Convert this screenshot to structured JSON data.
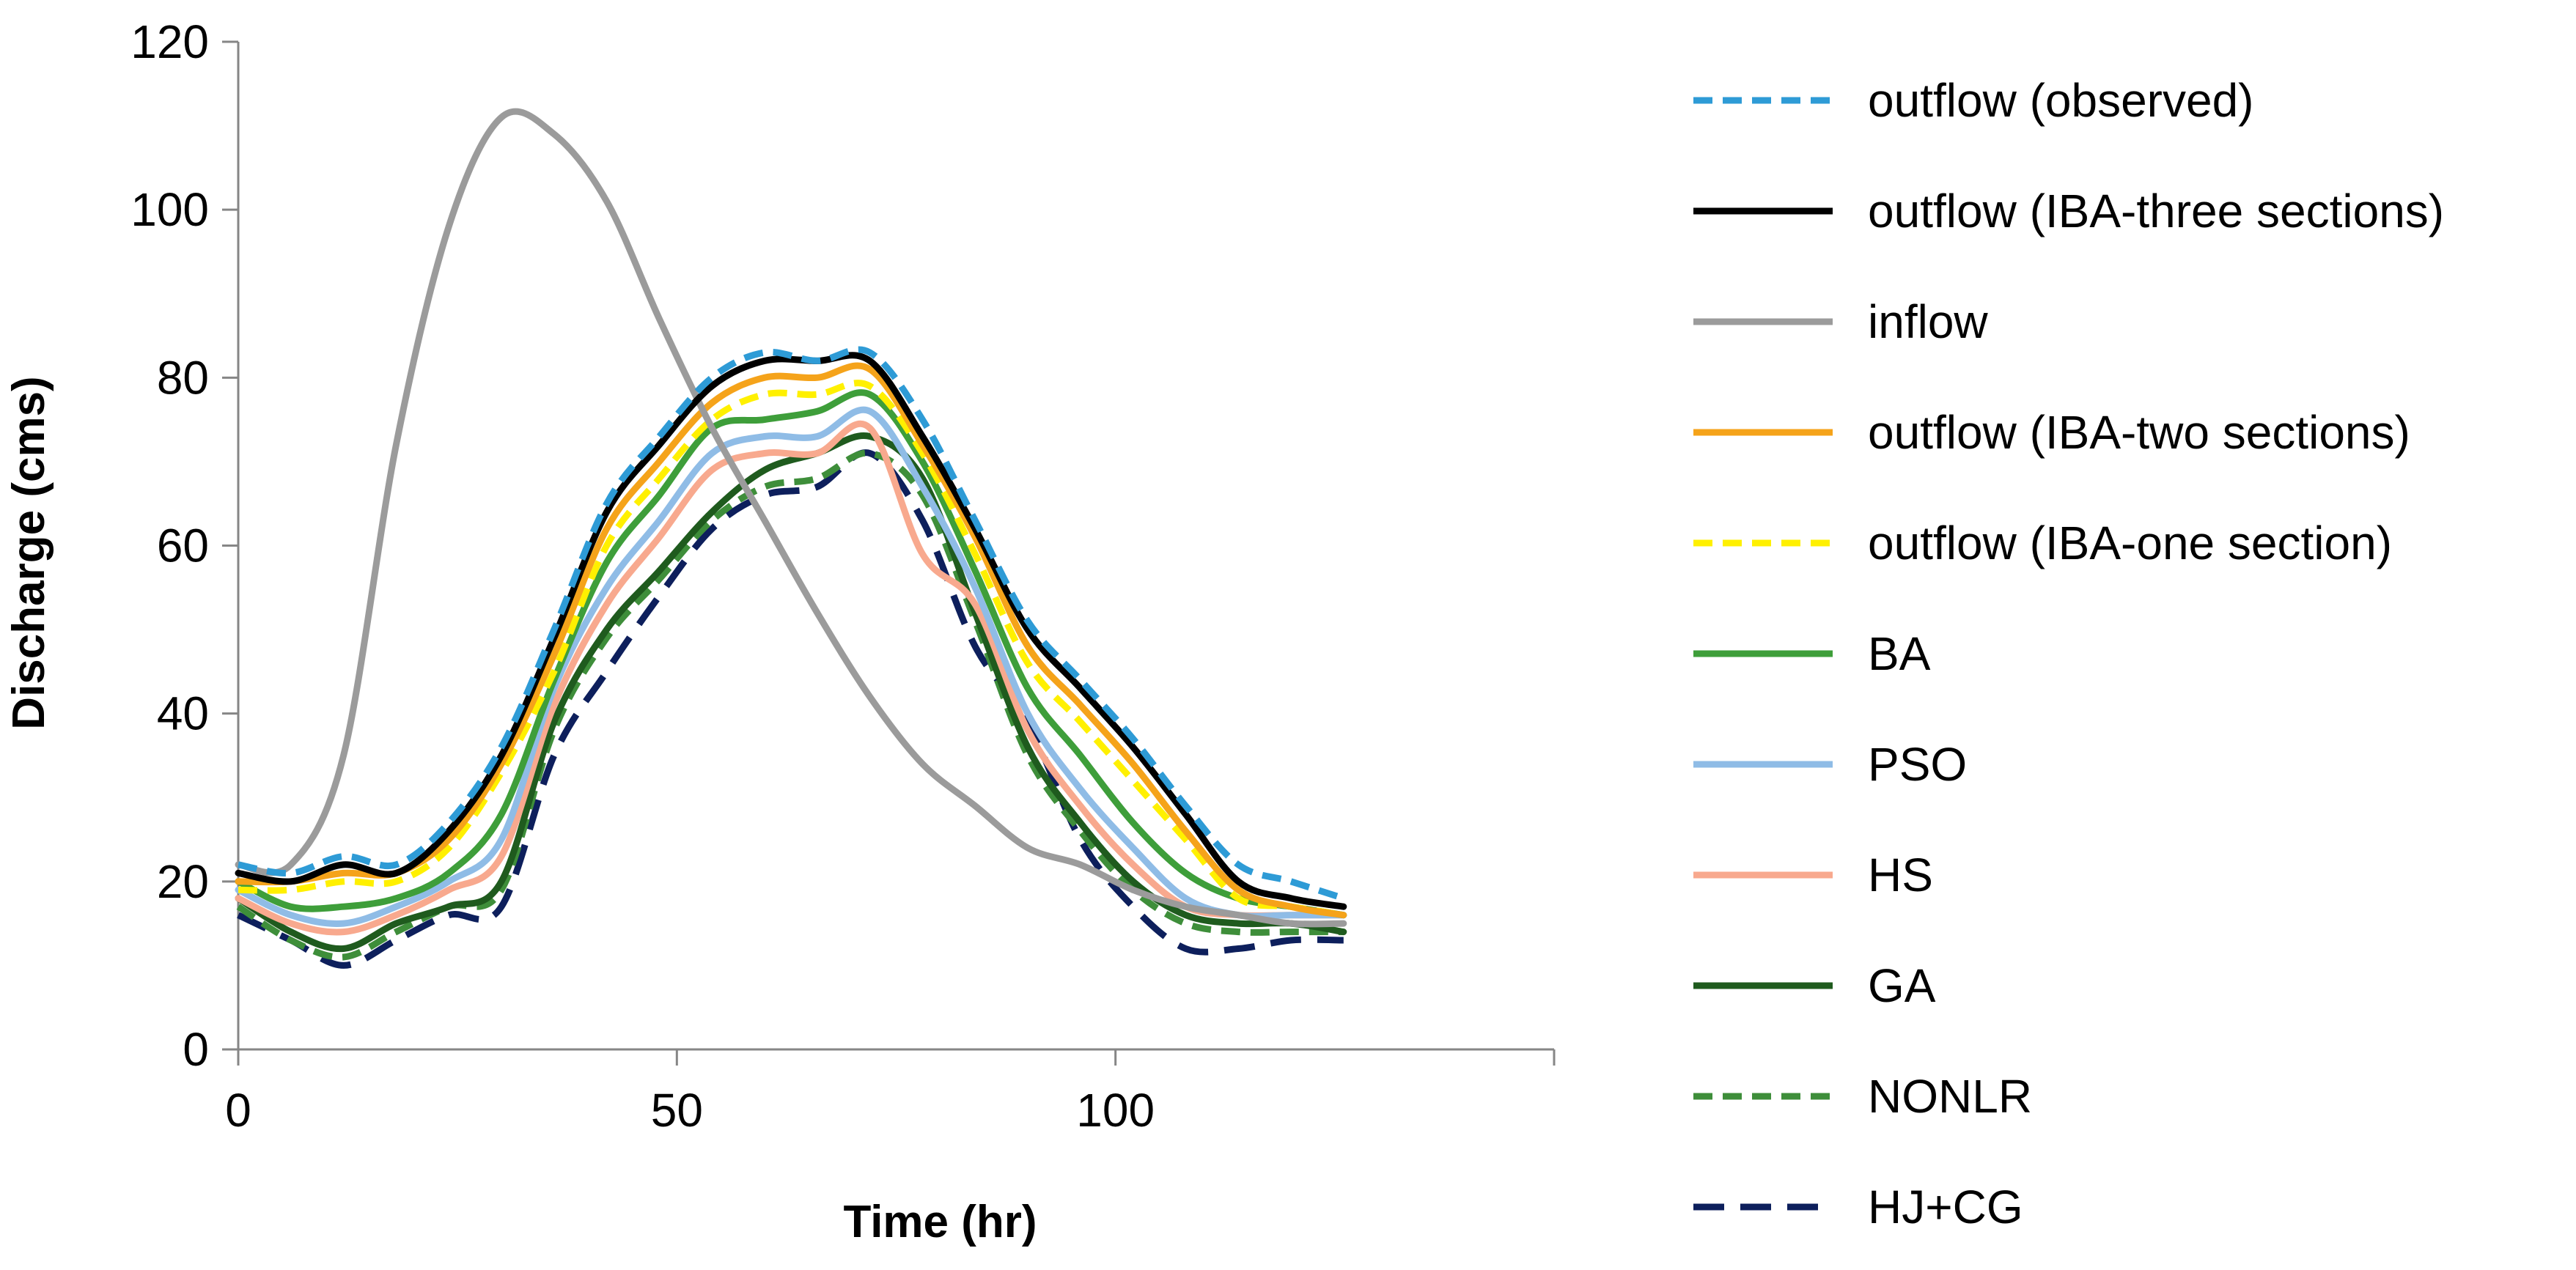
{
  "chart_data": {
    "type": "line",
    "title": "",
    "xlabel": "Time (hr)",
    "ylabel": "Discharge (cms)",
    "xlim": [
      0,
      150
    ],
    "ylim": [
      0,
      120
    ],
    "xticks": [
      0,
      50,
      100
    ],
    "yticks": [
      0,
      20,
      40,
      60,
      80,
      100,
      120
    ],
    "grid": false,
    "legend_position": "right",
    "series": [
      {
        "name": "outflow (observed)",
        "color": "#2E9BD6",
        "dash": "dashed",
        "points": [
          [
            0,
            22
          ],
          [
            6,
            21
          ],
          [
            12,
            23
          ],
          [
            18,
            22
          ],
          [
            24,
            27
          ],
          [
            30,
            36
          ],
          [
            36,
            50
          ],
          [
            42,
            65
          ],
          [
            48,
            73
          ],
          [
            54,
            80
          ],
          [
            60,
            83
          ],
          [
            66,
            82
          ],
          [
            72,
            83
          ],
          [
            78,
            75
          ],
          [
            84,
            63
          ],
          [
            90,
            51
          ],
          [
            96,
            44
          ],
          [
            102,
            37
          ],
          [
            108,
            29
          ],
          [
            114,
            22
          ],
          [
            120,
            20
          ],
          [
            126,
            18
          ]
        ]
      },
      {
        "name": "outflow (IBA-three sections)",
        "color": "#000000",
        "dash": "solid",
        "points": [
          [
            0,
            21
          ],
          [
            6,
            20
          ],
          [
            12,
            22
          ],
          [
            18,
            21
          ],
          [
            24,
            26
          ],
          [
            30,
            35
          ],
          [
            36,
            49
          ],
          [
            42,
            64
          ],
          [
            48,
            72
          ],
          [
            54,
            79
          ],
          [
            60,
            82
          ],
          [
            66,
            82
          ],
          [
            72,
            82
          ],
          [
            78,
            73
          ],
          [
            84,
            62
          ],
          [
            90,
            50
          ],
          [
            96,
            43
          ],
          [
            102,
            36
          ],
          [
            108,
            28
          ],
          [
            114,
            20
          ],
          [
            120,
            18
          ],
          [
            126,
            17
          ]
        ]
      },
      {
        "name": "inflow",
        "color": "#9B9B9B",
        "dash": "solid",
        "points": [
          [
            0,
            22
          ],
          [
            6,
            22
          ],
          [
            12,
            35
          ],
          [
            18,
            72
          ],
          [
            24,
            98
          ],
          [
            30,
            111
          ],
          [
            36,
            109
          ],
          [
            42,
            101
          ],
          [
            48,
            87
          ],
          [
            54,
            74
          ],
          [
            60,
            63
          ],
          [
            66,
            52
          ],
          [
            72,
            42
          ],
          [
            78,
            34
          ],
          [
            84,
            29
          ],
          [
            90,
            24
          ],
          [
            96,
            22
          ],
          [
            102,
            19
          ],
          [
            108,
            17
          ],
          [
            114,
            16
          ],
          [
            120,
            15
          ],
          [
            126,
            15
          ]
        ]
      },
      {
        "name": "outflow (IBA-two sections)",
        "color": "#F5A31A",
        "dash": "solid",
        "points": [
          [
            0,
            20
          ],
          [
            6,
            20
          ],
          [
            12,
            21
          ],
          [
            18,
            21
          ],
          [
            24,
            25
          ],
          [
            30,
            34
          ],
          [
            36,
            47
          ],
          [
            42,
            62
          ],
          [
            48,
            70
          ],
          [
            54,
            77
          ],
          [
            60,
            80
          ],
          [
            66,
            80
          ],
          [
            72,
            81
          ],
          [
            78,
            72
          ],
          [
            84,
            61
          ],
          [
            90,
            48
          ],
          [
            96,
            41
          ],
          [
            102,
            34
          ],
          [
            108,
            26
          ],
          [
            114,
            19
          ],
          [
            120,
            17
          ],
          [
            126,
            16
          ]
        ]
      },
      {
        "name": "outflow (IBA-one section)",
        "color": "#FFF000",
        "dash": "dashed",
        "points": [
          [
            0,
            19
          ],
          [
            6,
            19
          ],
          [
            12,
            20
          ],
          [
            18,
            20
          ],
          [
            24,
            24
          ],
          [
            30,
            33
          ],
          [
            36,
            45
          ],
          [
            42,
            60
          ],
          [
            48,
            68
          ],
          [
            54,
            75
          ],
          [
            60,
            78
          ],
          [
            66,
            78
          ],
          [
            72,
            79
          ],
          [
            78,
            71
          ],
          [
            84,
            59
          ],
          [
            90,
            46
          ],
          [
            96,
            39
          ],
          [
            102,
            32
          ],
          [
            108,
            25
          ],
          [
            114,
            18
          ],
          [
            120,
            17
          ],
          [
            126,
            16
          ]
        ]
      },
      {
        "name": "BA",
        "color": "#3E9E3A",
        "dash": "solid",
        "points": [
          [
            0,
            20
          ],
          [
            6,
            17
          ],
          [
            12,
            17
          ],
          [
            18,
            18
          ],
          [
            24,
            21
          ],
          [
            30,
            28
          ],
          [
            36,
            44
          ],
          [
            42,
            58
          ],
          [
            48,
            66
          ],
          [
            54,
            74
          ],
          [
            60,
            75
          ],
          [
            66,
            76
          ],
          [
            72,
            78
          ],
          [
            78,
            70
          ],
          [
            84,
            57
          ],
          [
            90,
            43
          ],
          [
            96,
            35
          ],
          [
            102,
            27
          ],
          [
            108,
            21
          ],
          [
            114,
            18
          ],
          [
            120,
            17
          ],
          [
            126,
            16
          ]
        ]
      },
      {
        "name": "PSO",
        "color": "#8FBCE6",
        "dash": "solid",
        "points": [
          [
            0,
            19
          ],
          [
            6,
            16
          ],
          [
            12,
            15
          ],
          [
            18,
            17
          ],
          [
            24,
            20
          ],
          [
            30,
            25
          ],
          [
            36,
            43
          ],
          [
            42,
            55
          ],
          [
            48,
            63
          ],
          [
            54,
            71
          ],
          [
            60,
            73
          ],
          [
            66,
            73
          ],
          [
            72,
            76
          ],
          [
            78,
            67
          ],
          [
            84,
            55
          ],
          [
            90,
            40
          ],
          [
            96,
            31
          ],
          [
            102,
            24
          ],
          [
            108,
            18
          ],
          [
            114,
            16
          ],
          [
            120,
            16
          ],
          [
            126,
            16
          ]
        ]
      },
      {
        "name": "HS",
        "color": "#F8A98E",
        "dash": "solid",
        "points": [
          [
            0,
            18
          ],
          [
            6,
            15
          ],
          [
            12,
            14
          ],
          [
            18,
            16
          ],
          [
            24,
            19
          ],
          [
            30,
            23
          ],
          [
            36,
            41
          ],
          [
            42,
            53
          ],
          [
            48,
            61
          ],
          [
            54,
            69
          ],
          [
            60,
            71
          ],
          [
            66,
            71
          ],
          [
            72,
            74
          ],
          [
            78,
            59
          ],
          [
            84,
            53
          ],
          [
            90,
            38
          ],
          [
            96,
            29
          ],
          [
            102,
            22
          ],
          [
            108,
            17
          ],
          [
            114,
            16
          ],
          [
            120,
            16
          ],
          [
            126,
            16
          ]
        ]
      },
      {
        "name": "GA",
        "color": "#1F5B1E",
        "dash": "solid",
        "points": [
          [
            0,
            18
          ],
          [
            6,
            14
          ],
          [
            12,
            12
          ],
          [
            18,
            15
          ],
          [
            24,
            17
          ],
          [
            30,
            20
          ],
          [
            36,
            39
          ],
          [
            42,
            50
          ],
          [
            48,
            57
          ],
          [
            54,
            64
          ],
          [
            60,
            69
          ],
          [
            66,
            71
          ],
          [
            72,
            73
          ],
          [
            78,
            68
          ],
          [
            84,
            52
          ],
          [
            90,
            36
          ],
          [
            96,
            27
          ],
          [
            102,
            20
          ],
          [
            108,
            16
          ],
          [
            114,
            15
          ],
          [
            120,
            15
          ],
          [
            126,
            14
          ]
        ]
      },
      {
        "name": "NONLR",
        "color": "#3E8E3A",
        "dash": "dashed",
        "points": [
          [
            0,
            17
          ],
          [
            6,
            13
          ],
          [
            12,
            11
          ],
          [
            18,
            14
          ],
          [
            24,
            17
          ],
          [
            30,
            19
          ],
          [
            36,
            38
          ],
          [
            42,
            49
          ],
          [
            48,
            56
          ],
          [
            54,
            63
          ],
          [
            60,
            67
          ],
          [
            66,
            68
          ],
          [
            72,
            71
          ],
          [
            78,
            66
          ],
          [
            84,
            51
          ],
          [
            90,
            35
          ],
          [
            96,
            26
          ],
          [
            102,
            19
          ],
          [
            108,
            15
          ],
          [
            114,
            14
          ],
          [
            120,
            14
          ],
          [
            126,
            14
          ]
        ]
      },
      {
        "name": "HJ+CG",
        "color": "#0D1F5C",
        "dash": "longdash",
        "points": [
          [
            0,
            16
          ],
          [
            6,
            13
          ],
          [
            12,
            10
          ],
          [
            18,
            13
          ],
          [
            24,
            16
          ],
          [
            30,
            17
          ],
          [
            36,
            35
          ],
          [
            42,
            45
          ],
          [
            48,
            54
          ],
          [
            54,
            62
          ],
          [
            60,
            66
          ],
          [
            66,
            67
          ],
          [
            72,
            71
          ],
          [
            78,
            63
          ],
          [
            84,
            48
          ],
          [
            90,
            39
          ],
          [
            96,
            25
          ],
          [
            102,
            17
          ],
          [
            108,
            12
          ],
          [
            114,
            12
          ],
          [
            120,
            13
          ],
          [
            126,
            13
          ]
        ]
      }
    ]
  }
}
